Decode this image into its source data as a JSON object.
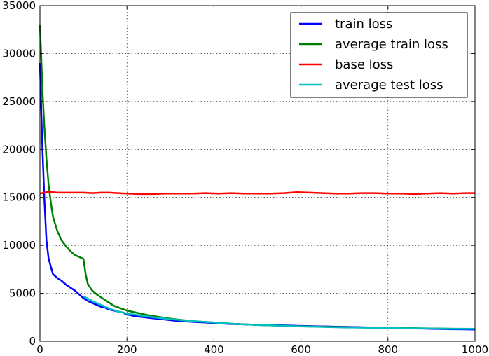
{
  "chart_data": {
    "type": "line",
    "title": "",
    "xlabel": "",
    "ylabel": "",
    "xlim": [
      0,
      1000
    ],
    "ylim": [
      0,
      35000
    ],
    "x_ticks": [
      0,
      200,
      400,
      600,
      800,
      1000
    ],
    "y_ticks": [
      0,
      5000,
      10000,
      15000,
      20000,
      25000,
      30000,
      35000
    ],
    "x_tick_labels": [
      "0",
      "200",
      "400",
      "600",
      "800",
      "1000"
    ],
    "y_tick_labels": [
      "0",
      "5000",
      "10000",
      "15000",
      "20000",
      "25000",
      "30000",
      "35000"
    ],
    "grid": true,
    "legend_position": "top-right",
    "series": [
      {
        "name": "train loss",
        "color": "#0000ff",
        "x": [
          0,
          5,
          10,
          15,
          20,
          25,
          30,
          40,
          50,
          60,
          70,
          80,
          90,
          100,
          110,
          120,
          130,
          140,
          150,
          160,
          170,
          180,
          190,
          200,
          220,
          240,
          260,
          280,
          300,
          320,
          340,
          360,
          380,
          400,
          420,
          440,
          460,
          480,
          500,
          520,
          540,
          560,
          580,
          600,
          620,
          640,
          660,
          680,
          700,
          720,
          740,
          760,
          780,
          800,
          820,
          840,
          860,
          880,
          900,
          920,
          940,
          960,
          980,
          1000
        ],
        "y": [
          29000,
          21000,
          15000,
          10500,
          8600,
          7800,
          7000,
          6600,
          6300,
          5900,
          5600,
          5300,
          4900,
          4500,
          4200,
          4000,
          3800,
          3600,
          3500,
          3300,
          3200,
          3100,
          3000,
          2800,
          2600,
          2500,
          2400,
          2300,
          2200,
          2100,
          2050,
          2000,
          1950,
          1900,
          1850,
          1800,
          1780,
          1750,
          1720,
          1700,
          1680,
          1650,
          1620,
          1600,
          1580,
          1560,
          1540,
          1520,
          1500,
          1480,
          1460,
          1440,
          1420,
          1400,
          1380,
          1360,
          1340,
          1320,
          1300,
          1280,
          1260,
          1250,
          1240,
          1230
        ]
      },
      {
        "name": "average train loss",
        "color": "#008000",
        "x": [
          0,
          3,
          6,
          10,
          15,
          20,
          25,
          30,
          40,
          50,
          60,
          70,
          80,
          90,
          100,
          105,
          110,
          120,
          130,
          140,
          150,
          170,
          200,
          250,
          300,
          350,
          400,
          450,
          500,
          550,
          600,
          650,
          700,
          750,
          800,
          850,
          900,
          950,
          1000
        ],
        "y": [
          33000,
          29500,
          26000,
          22500,
          19000,
          16300,
          14500,
          13000,
          11500,
          10500,
          9900,
          9400,
          9000,
          8800,
          8600,
          7000,
          6000,
          5300,
          4900,
          4600,
          4300,
          3700,
          3200,
          2700,
          2350,
          2100,
          1950,
          1800,
          1700,
          1620,
          1560,
          1510,
          1460,
          1430,
          1400,
          1370,
          1340,
          1310,
          1290
        ]
      },
      {
        "name": "base loss",
        "color": "#ff0000",
        "x": [
          0,
          10,
          20,
          30,
          40,
          60,
          80,
          100,
          120,
          140,
          160,
          180,
          200,
          230,
          260,
          290,
          320,
          350,
          380,
          410,
          440,
          470,
          500,
          530,
          560,
          590,
          620,
          650,
          680,
          710,
          740,
          770,
          800,
          830,
          860,
          890,
          920,
          950,
          980,
          1000
        ],
        "y": [
          15400,
          15500,
          15600,
          15550,
          15500,
          15500,
          15500,
          15500,
          15450,
          15500,
          15500,
          15450,
          15400,
          15350,
          15350,
          15400,
          15400,
          15400,
          15450,
          15400,
          15450,
          15400,
          15400,
          15400,
          15450,
          15550,
          15500,
          15450,
          15400,
          15400,
          15450,
          15450,
          15400,
          15400,
          15350,
          15400,
          15450,
          15400,
          15450,
          15450
        ]
      },
      {
        "name": "average test loss",
        "color": "#00bfbf",
        "x": [
          100,
          120,
          140,
          160,
          180,
          200,
          230,
          260,
          300,
          350,
          400,
          450,
          500,
          550,
          600,
          650,
          700,
          750,
          800,
          850,
          900,
          950,
          1000
        ],
        "y": [
          4700,
          4200,
          3800,
          3400,
          3100,
          2900,
          2700,
          2500,
          2300,
          2100,
          1950,
          1800,
          1700,
          1620,
          1550,
          1500,
          1450,
          1420,
          1380,
          1350,
          1320,
          1300,
          1290
        ]
      }
    ]
  }
}
